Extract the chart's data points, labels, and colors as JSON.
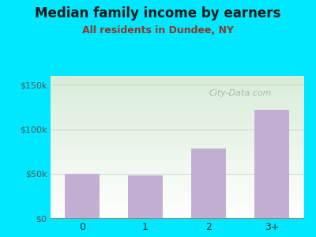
{
  "title": "Median family income by earners",
  "subtitle": "All residents in Dundee, NY",
  "categories": [
    "0",
    "1",
    "2",
    "3+"
  ],
  "values": [
    50000,
    48000,
    78000,
    122000
  ],
  "bar_color": "#c4afd4",
  "title_color": "#1a1a1a",
  "subtitle_color": "#8b3a2a",
  "background_color": "#00e8ff",
  "plot_bg_top": "#d8edd8",
  "plot_bg_bottom": "#ffffff",
  "yticks": [
    0,
    50000,
    100000,
    150000
  ],
  "ytick_labels": [
    "$0",
    "$50k",
    "$100k",
    "$150k"
  ],
  "ylim": [
    0,
    160000
  ],
  "watermark": "City-Data.com",
  "watermark_color": "#aaaaaa"
}
